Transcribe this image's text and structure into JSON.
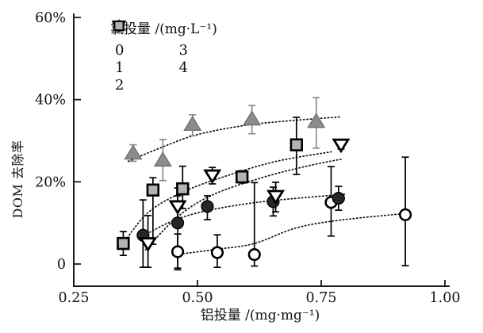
{
  "chart_data": {
    "type": "scatter",
    "title": "",
    "xlabel": "铝投量 /(mg·mg⁻¹)",
    "ylabel": "DOM 去除率",
    "legend_title": "氯投量 /(mg·L⁻¹)",
    "legend_position": "inside-top-left",
    "grid": false,
    "xlim": [
      0.25,
      1.0
    ],
    "ylim": [
      0,
      60
    ],
    "x_ticks": [
      {
        "v": 0.25,
        "label": "0.25"
      },
      {
        "v": 0.5,
        "label": "0.50"
      },
      {
        "v": 0.75,
        "label": "0.75"
      },
      {
        "v": 1.0,
        "label": "1.00"
      }
    ],
    "y_ticks": [
      {
        "v": 0,
        "label": "0"
      },
      {
        "v": 20,
        "label": "20%"
      },
      {
        "v": 40,
        "label": "40%"
      },
      {
        "v": 60,
        "label": "60%"
      }
    ],
    "series": [
      {
        "name": "0",
        "marker": "circle-open",
        "fill": "#ffffff",
        "edge": "#000000",
        "err_color": "#000000",
        "points": [
          {
            "x": 0.46,
            "y": 3,
            "eu": 4.3,
            "ed": 4.4
          },
          {
            "x": 0.54,
            "y": 2.8,
            "eu": 4.3,
            "ed": 3.6
          },
          {
            "x": 0.615,
            "y": 2.3,
            "eu": 17.5,
            "ed": 2.8
          },
          {
            "x": 0.77,
            "y": 15,
            "eu": 8.7,
            "ed": 8.2
          },
          {
            "x": 0.92,
            "y": 12,
            "eu": 14,
            "ed": 12.4
          }
        ],
        "trend": [
          [
            0.45,
            2.2
          ],
          [
            0.54,
            3.6
          ],
          [
            0.615,
            5.0
          ],
          [
            0.7,
            8.8
          ],
          [
            0.79,
            10.7
          ],
          [
            0.92,
            12.3
          ]
        ]
      },
      {
        "name": "1",
        "marker": "triangle-up-filled",
        "fill": "#8c8c8c",
        "edge": "#6f6f6f",
        "err_color": "#8c8c8c",
        "points": [
          {
            "x": 0.37,
            "y": 27,
            "eu": 2,
            "ed": 2
          },
          {
            "x": 0.43,
            "y": 25.3,
            "eu": 5,
            "ed": 5
          },
          {
            "x": 0.49,
            "y": 34,
            "eu": 2.3,
            "ed": 2.8
          },
          {
            "x": 0.61,
            "y": 35.3,
            "eu": 3.3,
            "ed": 3.6
          },
          {
            "x": 0.74,
            "y": 34.7,
            "eu": 5.8,
            "ed": 6.5
          }
        ],
        "trend": [
          [
            0.36,
            25.0
          ],
          [
            0.43,
            28.5
          ],
          [
            0.5,
            31.5
          ],
          [
            0.6,
            33.8
          ],
          [
            0.7,
            35.0
          ],
          [
            0.79,
            35.8
          ]
        ]
      },
      {
        "name": "2",
        "marker": "square-filled",
        "fill": "#b3b3b3",
        "edge": "#000000",
        "err_color": "#000000",
        "points": [
          {
            "x": 0.35,
            "y": 5,
            "eu": 2.9,
            "ed": 2.9
          },
          {
            "x": 0.41,
            "y": 18,
            "eu": 3,
            "ed": 13.2
          },
          {
            "x": 0.47,
            "y": 18.3,
            "eu": 5.5,
            "ed": 4.8
          },
          {
            "x": 0.59,
            "y": 21.2,
            "eu": 1.5,
            "ed": 1.5
          },
          {
            "x": 0.7,
            "y": 29,
            "eu": 6.7,
            "ed": 7.2
          }
        ],
        "trend": [
          [
            0.35,
            5.0
          ],
          [
            0.4,
            12.5
          ],
          [
            0.47,
            17.5
          ],
          [
            0.56,
            21.5
          ],
          [
            0.66,
            25.0
          ],
          [
            0.77,
            27.3
          ]
        ]
      },
      {
        "name": "3",
        "marker": "circle-filled",
        "fill": "#262626",
        "edge": "#000000",
        "err_color": "#000000",
        "points": [
          {
            "x": 0.39,
            "y": 7,
            "eu": 8.6,
            "ed": 7.8
          },
          {
            "x": 0.46,
            "y": 10,
            "eu": 8.5,
            "ed": 11
          },
          {
            "x": 0.52,
            "y": 14,
            "eu": 2.6,
            "ed": 3.2
          },
          {
            "x": 0.653,
            "y": 15.2,
            "eu": 3.5,
            "ed": 3.5
          },
          {
            "x": 0.785,
            "y": 16,
            "eu": 2.9,
            "ed": 2.9
          }
        ],
        "trend": [
          [
            0.385,
            6.5
          ],
          [
            0.45,
            10.5
          ],
          [
            0.52,
            13.0
          ],
          [
            0.62,
            15.0
          ],
          [
            0.72,
            16.2
          ],
          [
            0.8,
            17.0
          ]
        ]
      },
      {
        "name": "4",
        "marker": "triangle-down-open",
        "fill": "#ffffff",
        "edge": "#000000",
        "err_color": "#000000",
        "points": [
          {
            "x": 0.4,
            "y": 5,
            "eu": 6.8,
            "ed": 5.8
          },
          {
            "x": 0.46,
            "y": 14,
            "eu": 2.6,
            "ed": 3
          },
          {
            "x": 0.53,
            "y": 21.5,
            "eu": 2,
            "ed": 2
          },
          {
            "x": 0.658,
            "y": 16.5,
            "eu": 3.4,
            "ed": 3.8
          },
          {
            "x": 0.79,
            "y": 29,
            "eu": 1,
            "ed": 1
          }
        ],
        "trend": [
          [
            0.395,
            3.5
          ],
          [
            0.46,
            11.5
          ],
          [
            0.53,
            16.8
          ],
          [
            0.63,
            21.0
          ],
          [
            0.72,
            23.8
          ],
          [
            0.79,
            25.5
          ]
        ]
      }
    ]
  }
}
